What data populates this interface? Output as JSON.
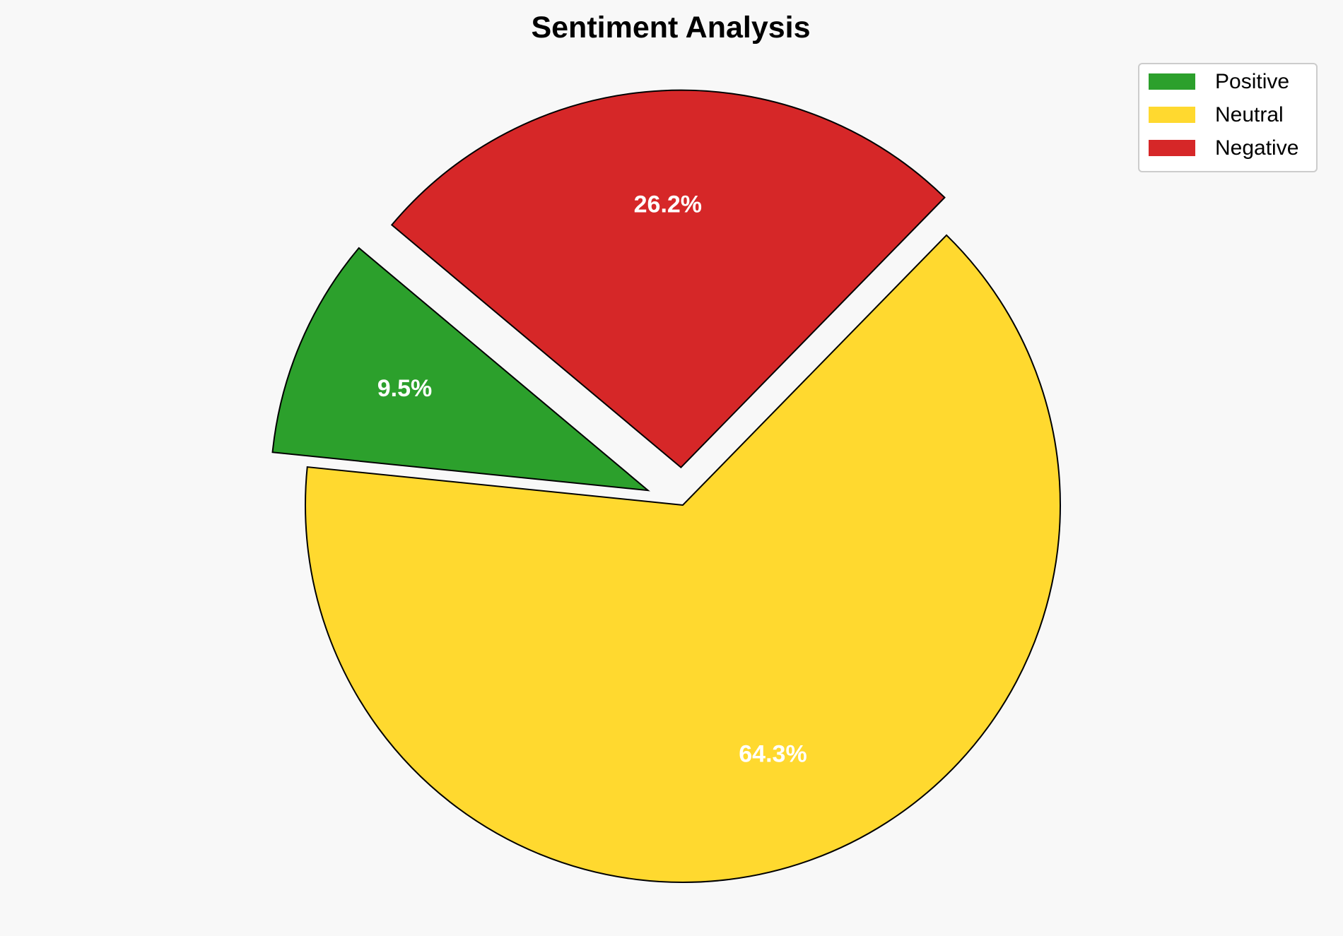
{
  "chart_data": {
    "type": "pie",
    "title": "Sentiment Analysis",
    "categories": [
      "Positive",
      "Neutral",
      "Negative"
    ],
    "values": [
      9.5,
      64.3,
      26.2
    ],
    "labels": [
      "9.5%",
      "64.3%",
      "26.2%"
    ],
    "colors": [
      "#2ca02c",
      "#ffd92f",
      "#d62728"
    ],
    "explode": [
      0.1,
      0,
      0.1
    ],
    "start_angle": 140,
    "legend_placement": "top-right"
  }
}
